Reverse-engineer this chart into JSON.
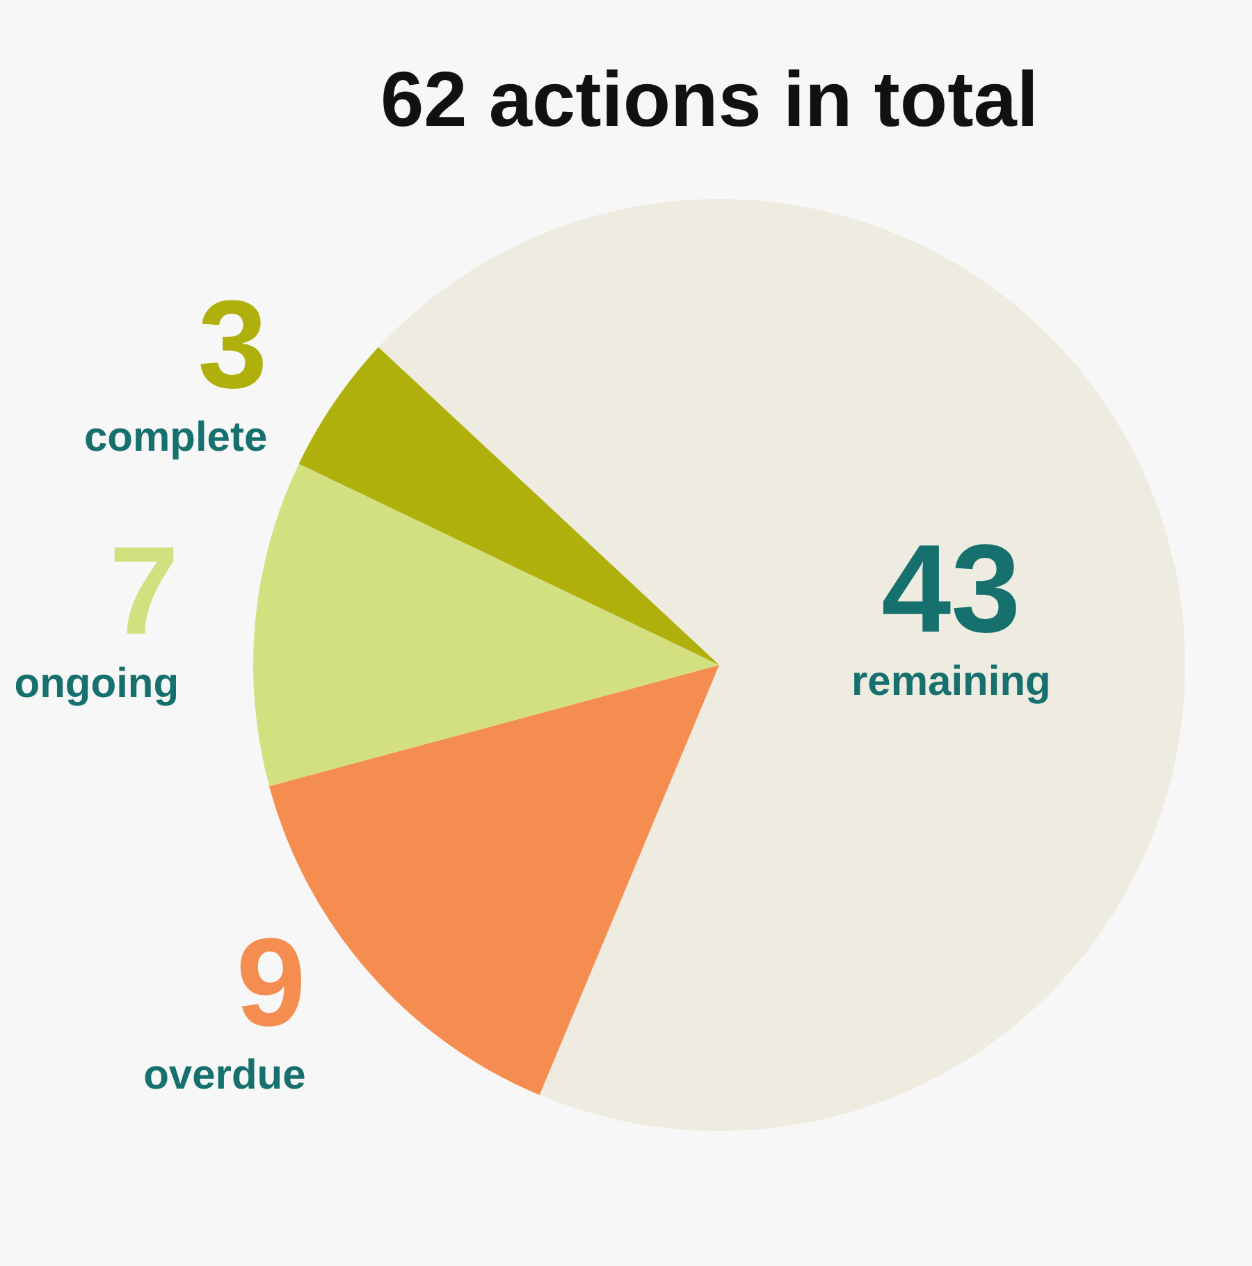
{
  "chart_data": {
    "type": "pie",
    "title": "62 actions in total",
    "categories": [
      "remaining",
      "overdue",
      "ongoing",
      "complete"
    ],
    "values": [
      43,
      9,
      7,
      3
    ],
    "colors": [
      "#eeece1",
      "#f58d50",
      "#d3e080",
      "#afb00c"
    ],
    "data_labels": true,
    "legend": false
  }
}
